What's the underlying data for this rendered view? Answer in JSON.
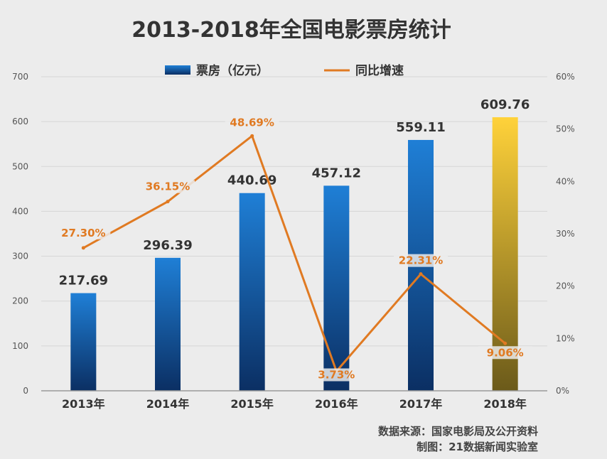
{
  "chart_data": {
    "type": "bar",
    "title": "2013-2018年全国电影票房统计",
    "categories": [
      "2013年",
      "2014年",
      "2015年",
      "2016年",
      "2017年",
      "2018年"
    ],
    "series": [
      {
        "name": "票房（亿元）",
        "type": "bar",
        "axis": "left",
        "values": [
          217.69,
          296.39,
          440.69,
          457.12,
          559.11,
          609.76
        ],
        "labels": [
          "217.69",
          "296.39",
          "440.69",
          "457.12",
          "559.11",
          "609.76"
        ],
        "color": "#1a6fc0",
        "highlight_color": "#f5c530"
      },
      {
        "name": "同比增速",
        "type": "line",
        "axis": "right",
        "values": [
          27.3,
          36.15,
          48.69,
          3.73,
          22.31,
          9.06
        ],
        "labels": [
          "27.30%",
          "36.15%",
          "48.69%",
          "3.73%",
          "22.31%",
          "9.06%"
        ],
        "color": "#e07a22"
      }
    ],
    "ylim_left": [
      0,
      700
    ],
    "yticks_left": [
      "0",
      "100",
      "200",
      "300",
      "400",
      "500",
      "600",
      "700"
    ],
    "ylim_right": [
      0,
      60
    ],
    "yticks_right": [
      "0%",
      "10%",
      "20%",
      "30%",
      "40%",
      "50%",
      "60%"
    ],
    "grid": true,
    "legend_position": "top"
  },
  "source": {
    "line1": "数据来源：国家电影局及公开资料",
    "line2": "制图：21数据新闻实验室"
  }
}
